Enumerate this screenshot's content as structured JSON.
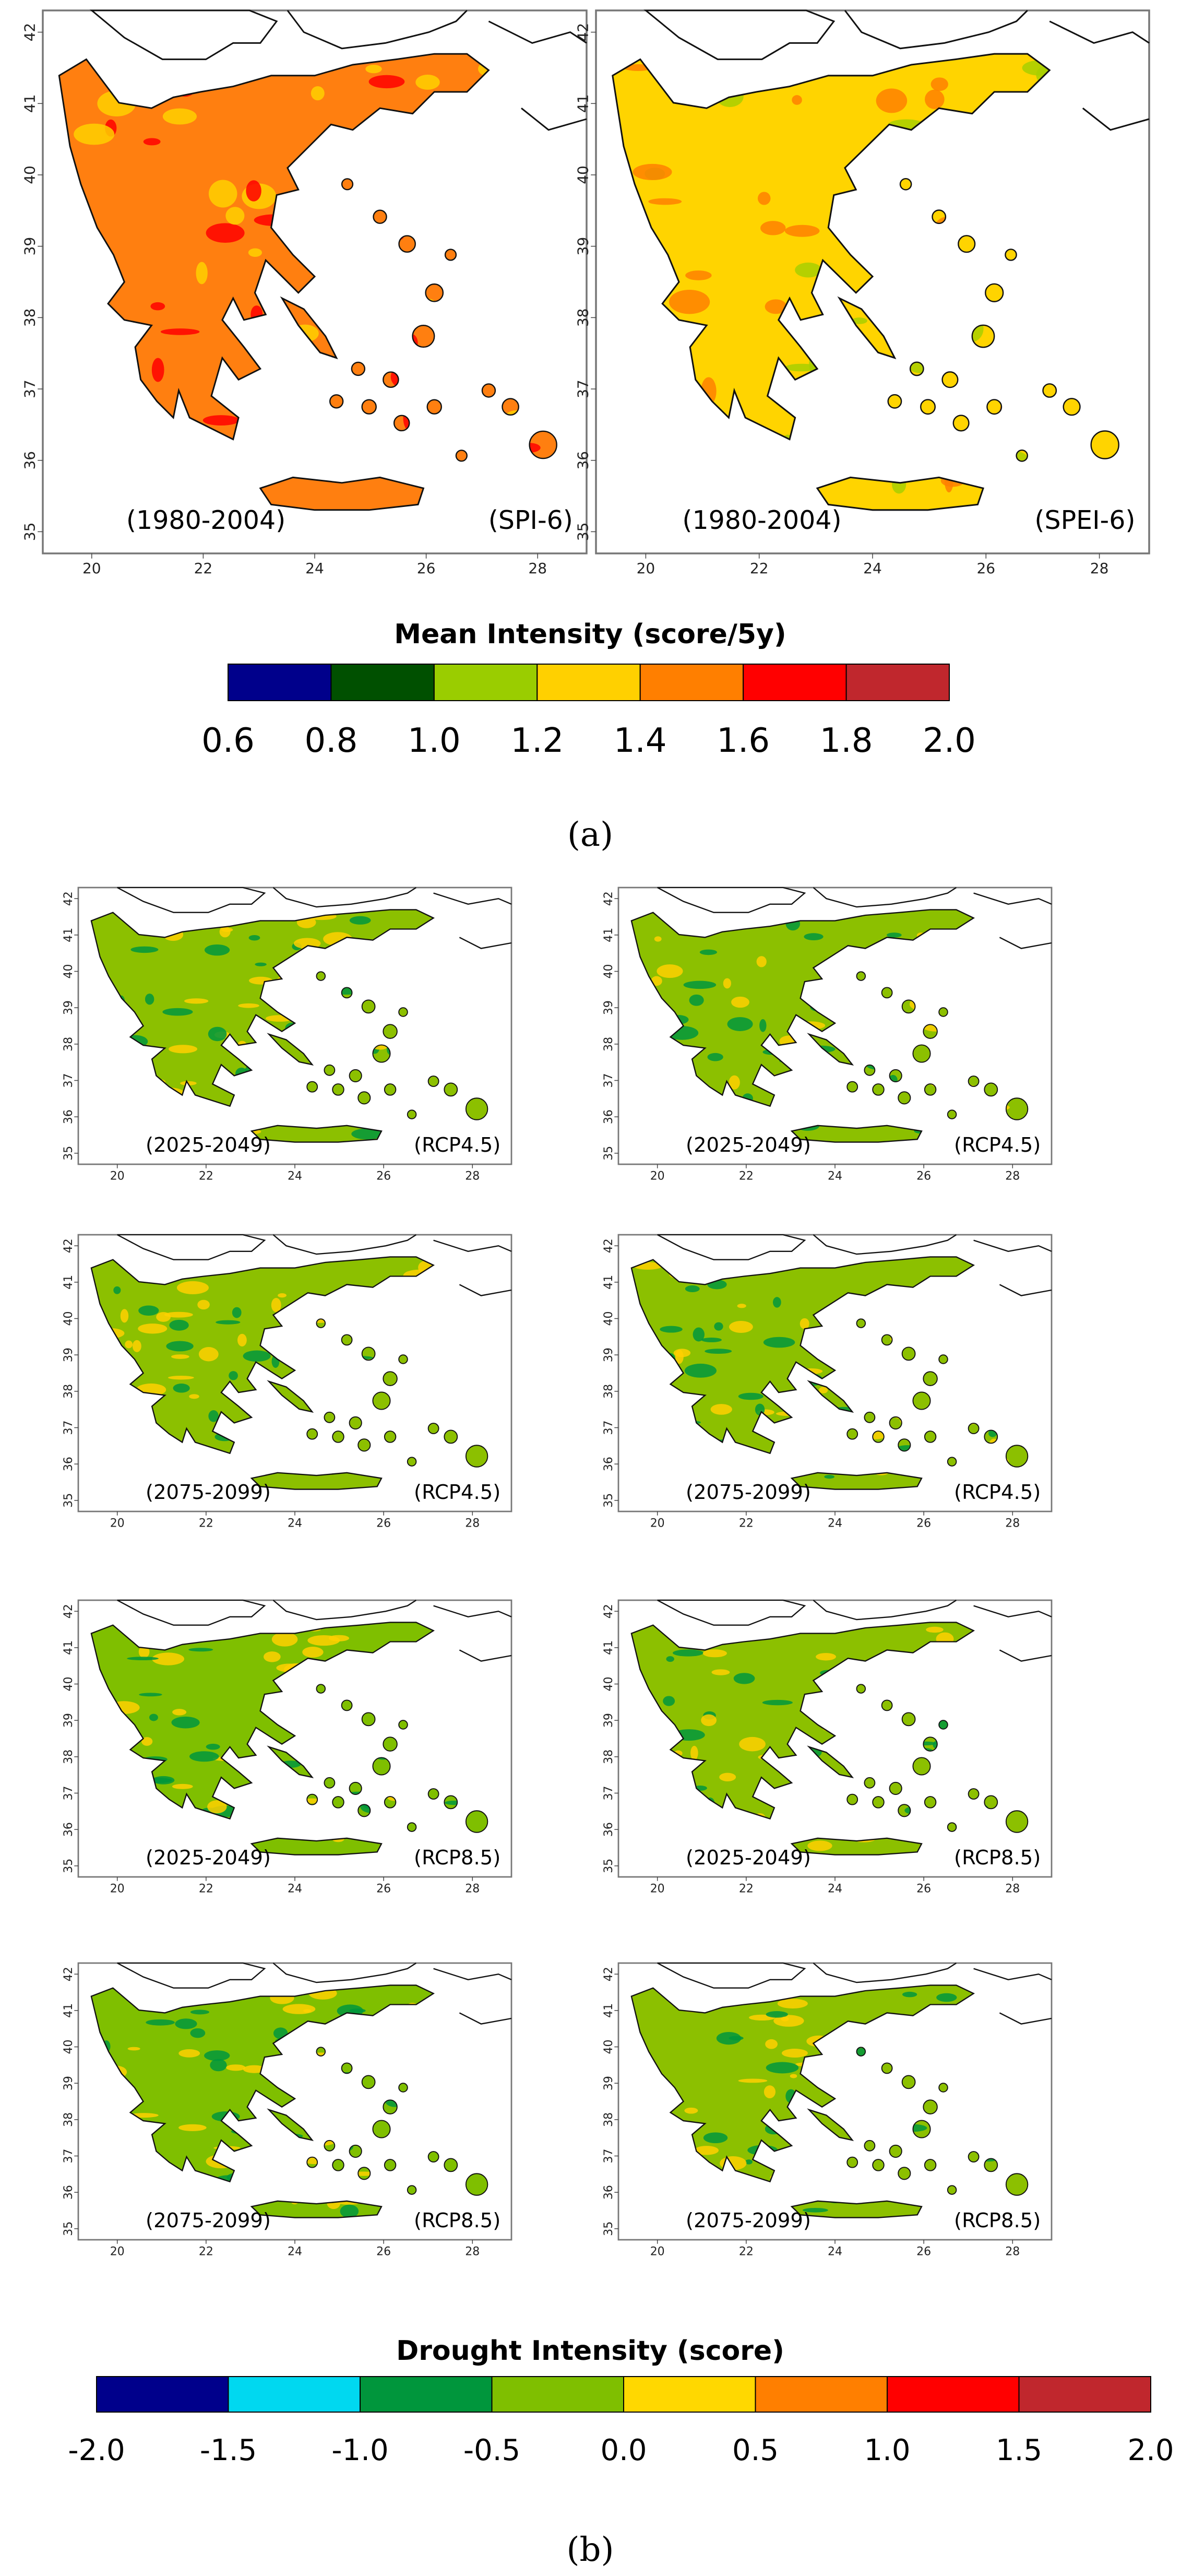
{
  "part_a": {
    "maps": [
      {
        "period": "(1980-2004)",
        "index": "(SPI-6)",
        "fill": "#FF7F10",
        "patches": [
          "#FFD000",
          "#FF0000"
        ]
      },
      {
        "period": "(1980-2004)",
        "index": "(SPEI-6)",
        "fill": "#FFD400",
        "patches": [
          "#FF8000",
          "#A8CF00"
        ]
      }
    ],
    "lat_ticks": [
      "42",
      "41",
      "40",
      "39",
      "38",
      "37",
      "36",
      "35"
    ],
    "lon_ticks": [
      "20",
      "22",
      "24",
      "26",
      "28"
    ],
    "legend": {
      "title": "Mean Intensity (score/5y)",
      "labels": [
        "0.6",
        "0.8",
        "1.0",
        "1.2",
        "1.4",
        "1.6",
        "1.8",
        "2.0"
      ],
      "colors": [
        "#00008B",
        "#005000",
        "#9ACD00",
        "#FFD000",
        "#FF7F00",
        "#FF0000",
        "#C0272D"
      ]
    },
    "caption": "(a)"
  },
  "part_b": {
    "maps": [
      {
        "period": "(2025-2049)",
        "scenario": "(RCP4.5)",
        "fill": "#8CC000",
        "patches": [
          "#FFD000",
          "#00963C"
        ]
      },
      {
        "period": "(2025-2049)",
        "scenario": "(RCP4.5)",
        "fill": "#8CC000",
        "patches": [
          "#00963C",
          "#FFD000"
        ]
      },
      {
        "period": "(2075-2099)",
        "scenario": "(RCP4.5)",
        "fill": "#8CC000",
        "patches": [
          "#FFD000",
          "#00963C"
        ]
      },
      {
        "period": "(2075-2099)",
        "scenario": "(RCP4.5)",
        "fill": "#8CC000",
        "patches": [
          "#00963C",
          "#FFD000"
        ]
      },
      {
        "period": "(2025-2049)",
        "scenario": "(RCP8.5)",
        "fill": "#7FBF00",
        "patches": [
          "#00963C",
          "#FFD000"
        ]
      },
      {
        "period": "(2025-2049)",
        "scenario": "(RCP8.5)",
        "fill": "#8CC000",
        "patches": [
          "#00963C",
          "#FFD000"
        ]
      },
      {
        "period": "(2075-2099)",
        "scenario": "(RCP8.5)",
        "fill": "#7FBF00",
        "patches": [
          "#FFD000",
          "#00963C"
        ]
      },
      {
        "period": "(2075-2099)",
        "scenario": "(RCP8.5)",
        "fill": "#8CC000",
        "patches": [
          "#00963C",
          "#FFD000"
        ]
      }
    ],
    "lat_ticks": [
      "42",
      "41",
      "40",
      "39",
      "38",
      "37",
      "36",
      "35"
    ],
    "lon_ticks": [
      "20",
      "22",
      "24",
      "26",
      "28"
    ],
    "legend": {
      "title": "Drought Intensity (score)",
      "labels": [
        "-2.0",
        "-1.5",
        "-1.0",
        "-0.5",
        "0.0",
        "0.5",
        "1.0",
        "1.5",
        "2.0"
      ],
      "colors": [
        "#00008B",
        "#00D8F0",
        "#00963C",
        "#7FBF00",
        "#FFD800",
        "#FF7F00",
        "#FF0000",
        "#C0272D"
      ]
    },
    "caption": "(b)"
  }
}
